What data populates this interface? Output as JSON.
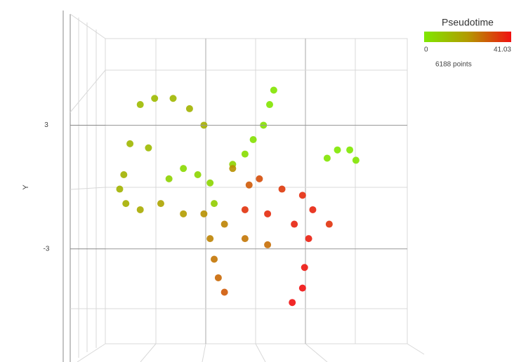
{
  "chart_data": {
    "type": "scatter",
    "y_label": "Y",
    "ylim": [
      -7.6,
      7.2
    ],
    "yticks": [
      -3,
      3
    ],
    "xlim": [
      -4.9,
      9.8
    ],
    "x": [
      -3.2,
      -2.5,
      -1.6,
      -0.8,
      -0.1,
      -3.7,
      -2.8,
      -4.0,
      -4.2,
      -3.9,
      -3.2,
      -1.8,
      -1.1,
      -0.4,
      0.2,
      0.4,
      1.3,
      1.9,
      2.3,
      2.8,
      3.1,
      3.3,
      5.9,
      6.4,
      7.0,
      7.3,
      -2.2,
      -1.1,
      -0.1,
      0.9,
      1.9,
      3.0,
      0.2,
      0.4,
      0.6,
      0.9,
      1.3,
      2.1,
      2.6,
      3.7,
      4.7,
      5.2,
      5.0,
      4.8,
      4.7,
      4.2,
      1.9,
      3.0,
      4.3,
      6.0
    ],
    "y": [
      4.0,
      4.3,
      4.3,
      3.8,
      3.0,
      2.1,
      1.9,
      0.6,
      -0.1,
      -0.8,
      -1.1,
      0.4,
      0.9,
      0.6,
      0.2,
      -0.8,
      1.1,
      1.6,
      2.3,
      3.0,
      4.0,
      4.7,
      1.4,
      1.8,
      1.8,
      1.3,
      -0.8,
      -1.3,
      -1.3,
      -1.8,
      -2.5,
      -2.8,
      -2.5,
      -3.5,
      -4.4,
      -5.1,
      0.9,
      0.1,
      0.4,
      -0.1,
      -0.4,
      -1.1,
      -2.5,
      -3.9,
      -4.9,
      -5.6,
      -1.1,
      -1.3,
      -1.8,
      -1.8
    ],
    "color_values": [
      12,
      12,
      13,
      14,
      15,
      13,
      12,
      14,
      14,
      15,
      16,
      6,
      4,
      5,
      5,
      7,
      6,
      3,
      2,
      2,
      1,
      1,
      1,
      0,
      0,
      1,
      18,
      20,
      22,
      24,
      26,
      27,
      24,
      26,
      28,
      30,
      22,
      30,
      32,
      35,
      37,
      38,
      39,
      40,
      41,
      41,
      36,
      37,
      38,
      36
    ],
    "colorscale": [
      "#7fe800",
      "#b39a00",
      "#f01010"
    ],
    "colorbar": {
      "title": "Pseudotime",
      "lim": [
        0,
        41.03
      ],
      "ticks": [
        0,
        41.03
      ]
    },
    "annotation": "6188 points"
  }
}
